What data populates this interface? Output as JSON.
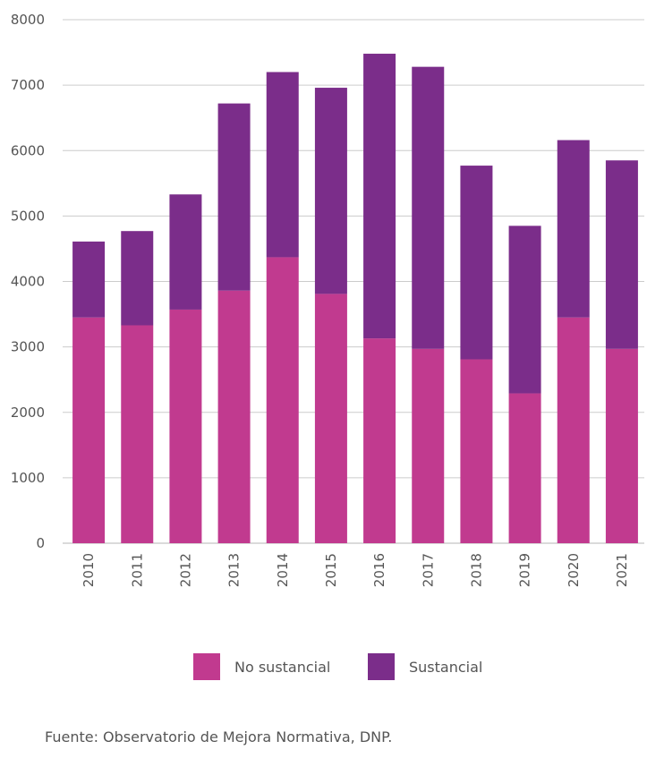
{
  "chart_data": {
    "type": "bar",
    "stacked": true,
    "categories": [
      "2010",
      "2011",
      "2012",
      "2013",
      "2014",
      "2015",
      "2016",
      "2017",
      "2018",
      "2019",
      "2020",
      "2021"
    ],
    "series": [
      {
        "name": "No sustancial",
        "color": "#c13a8f",
        "values": [
          3450,
          3330,
          3570,
          3860,
          4370,
          3810,
          3130,
          2970,
          2810,
          2290,
          3450,
          2970
        ]
      },
      {
        "name": "Sustancial",
        "color": "#7b2d8a",
        "values": [
          1160,
          1440,
          1760,
          2860,
          2830,
          3150,
          4350,
          4310,
          2960,
          2560,
          2710,
          2880
        ]
      }
    ],
    "title": "",
    "xlabel": "",
    "ylabel": "",
    "ylim": [
      0,
      8000
    ],
    "yticks": [
      "0",
      "1000",
      "2000",
      "3000",
      "4000",
      "5000",
      "6000",
      "7000",
      "8000"
    ],
    "grid": true,
    "legend": "bottom"
  },
  "source_text": "Fuente: Observatorio de Mejora Normativa, DNP."
}
